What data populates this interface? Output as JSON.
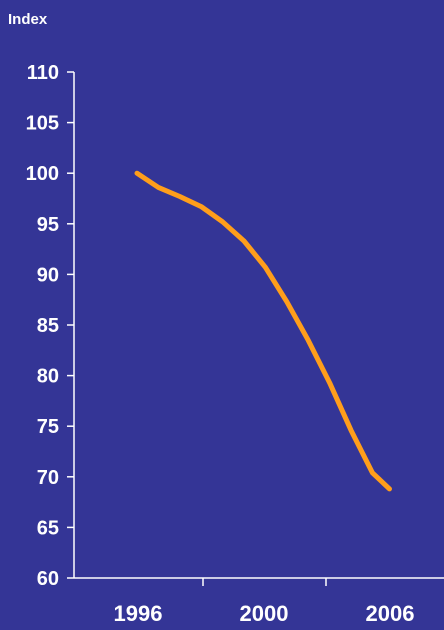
{
  "chart_data": {
    "type": "line",
    "title": "",
    "xlabel": "",
    "ylabel": "Index",
    "ylim": [
      60,
      110
    ],
    "y_ticks": [
      60,
      65,
      70,
      75,
      80,
      85,
      90,
      95,
      100,
      105,
      110
    ],
    "x_ticks": [
      "1996",
      "2000",
      "2006"
    ],
    "grid": false,
    "legend": "none",
    "series": [
      {
        "color": "#FF9E1B",
        "points": [
          {
            "x": 0.0,
            "y": 100.0
          },
          {
            "x": 0.5,
            "y": 98.6
          },
          {
            "x": 1.0,
            "y": 97.7
          },
          {
            "x": 1.5,
            "y": 96.7
          },
          {
            "x": 2.0,
            "y": 95.2
          },
          {
            "x": 2.5,
            "y": 93.3
          },
          {
            "x": 3.0,
            "y": 90.7
          },
          {
            "x": 3.5,
            "y": 87.3
          },
          {
            "x": 4.0,
            "y": 83.5
          },
          {
            "x": 4.5,
            "y": 79.3
          },
          {
            "x": 5.0,
            "y": 74.6
          },
          {
            "x": 5.5,
            "y": 70.4
          },
          {
            "x": 5.9,
            "y": 68.8
          }
        ]
      }
    ],
    "colors": {
      "background": "#343596",
      "axis": "#ffffff",
      "text": "#ffffff"
    }
  }
}
